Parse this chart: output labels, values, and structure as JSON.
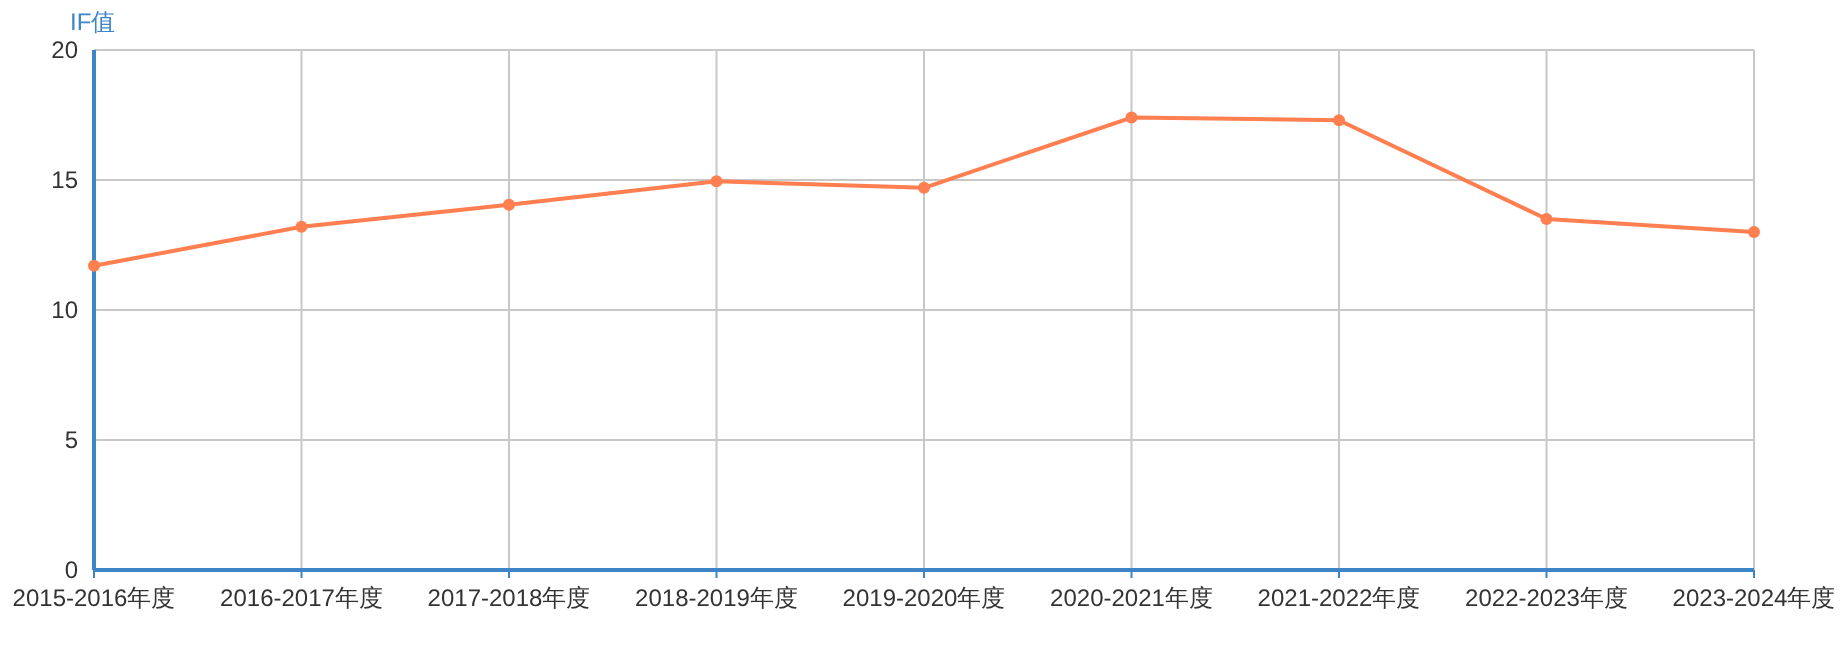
{
  "chart_data": {
    "type": "line",
    "ylabel": "IF值",
    "categories": [
      "2015-2016年度",
      "2016-2017年度",
      "2017-2018年度",
      "2018-2019年度",
      "2019-2020年度",
      "2020-2021年度",
      "2021-2022年度",
      "2022-2023年度",
      "2023-2024年度"
    ],
    "series": [
      {
        "color": "#ff7f50",
        "values": [
          11.7,
          13.2,
          14.05,
          14.95,
          14.7,
          17.4,
          17.3,
          13.5,
          13.0
        ]
      }
    ],
    "ylim": [
      0,
      20
    ],
    "yticks": [
      0,
      5,
      10,
      15,
      20
    ],
    "grid": true,
    "marker": "circle",
    "line_style": "solid"
  }
}
